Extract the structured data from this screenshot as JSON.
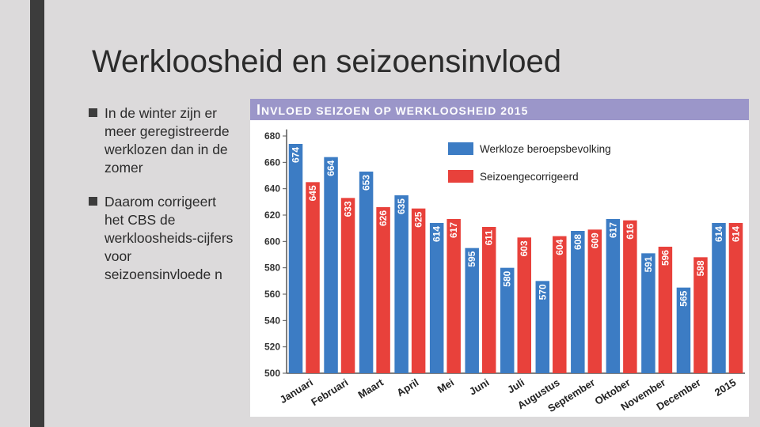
{
  "slide": {
    "title": "Werkloosheid en seizoensinvloed",
    "bullets": [
      "In de winter zijn er meer geregistreerde werklozen dan in de zomer",
      "Daarom corrigeert het CBS de werkloosheids-cijfers voor seizoensinvloede n"
    ]
  },
  "colors": {
    "header": "#9b96c9",
    "series1": "#3c7cc4",
    "series2": "#e8413b"
  },
  "chart_data": {
    "type": "bar",
    "title": "INVLOED SEIZOEN OP WERKLOOSHEID 2015",
    "title_first": "I",
    "title_rest": "NVLOED SEIZOEN OP WERKLOOSHEID 2015",
    "categories": [
      "Januari",
      "Februari",
      "Maart",
      "April",
      "Mei",
      "Juni",
      "Juli",
      "Augustus",
      "September",
      "Oktober",
      "November",
      "December",
      "2015"
    ],
    "series": [
      {
        "name": "Werkloze beroepsbevolking",
        "values": [
          674,
          664,
          653,
          635,
          614,
          595,
          580,
          570,
          608,
          617,
          591,
          565,
          614
        ]
      },
      {
        "name": "Seizoengecorrigeerd",
        "values": [
          645,
          633,
          626,
          625,
          617,
          611,
          603,
          604,
          609,
          616,
          596,
          588,
          614
        ]
      }
    ],
    "yticks": [
      "680",
      "660",
      "640",
      "620",
      "600",
      "580",
      "560",
      "540",
      "520",
      "500"
    ],
    "ylim": [
      500,
      685
    ],
    "xlabel": "",
    "ylabel": "",
    "legend_position": "top-right",
    "grid": false
  }
}
